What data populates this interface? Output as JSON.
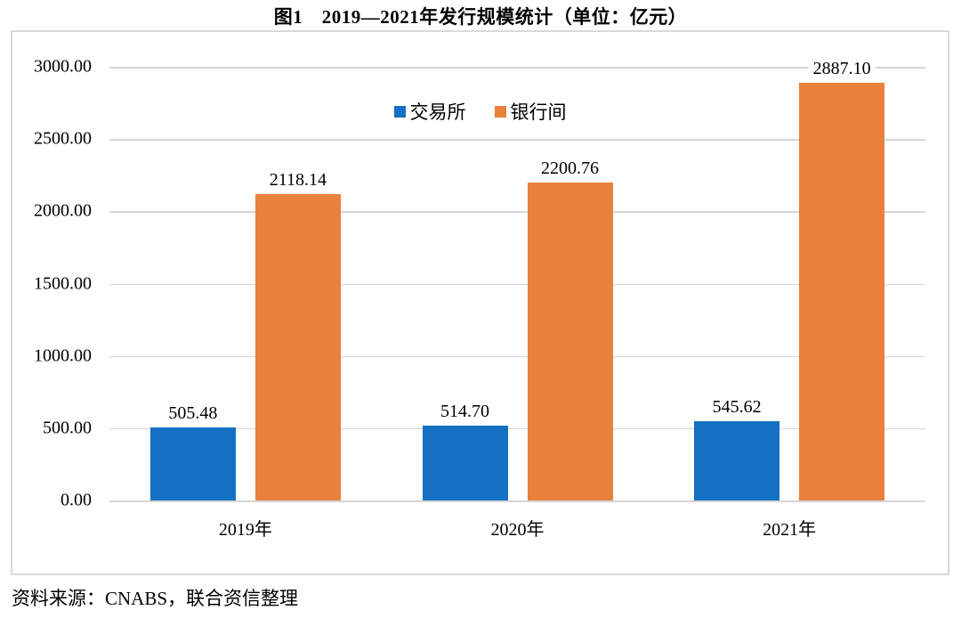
{
  "title": "图1　2019—2021年发行规模统计（单位：亿元）",
  "source": "资料来源：CNABS，联合资信整理",
  "chart_data": {
    "type": "bar",
    "title": "图1　2019—2021年发行规模统计（单位：亿元）",
    "categories": [
      "2019年",
      "2020年",
      "2021年"
    ],
    "series": [
      {
        "name": "交易所",
        "color": "#1470C2",
        "values": [
          505.48,
          514.7,
          545.62
        ]
      },
      {
        "name": "银行间",
        "color": "#E8813B",
        "values": [
          2118.14,
          2200.76,
          2887.1
        ]
      }
    ],
    "ylim": [
      0,
      3000
    ],
    "ytick_step": 500,
    "ytick_decimals": 2,
    "value_label_decimals": 2,
    "grid": true,
    "gridline_color": "#d6d6d6",
    "legend_position": "top-center",
    "xlabel": "",
    "ylabel": ""
  }
}
